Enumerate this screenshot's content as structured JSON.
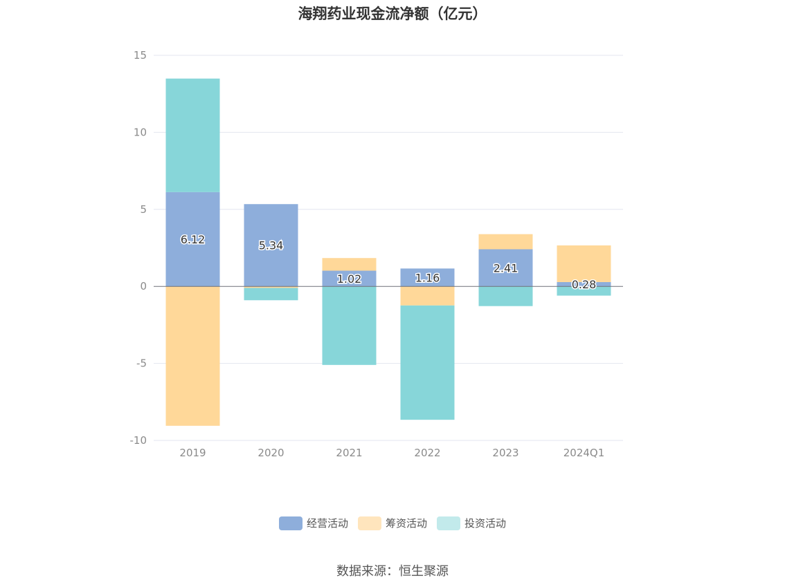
{
  "chart_data": {
    "type": "bar",
    "stacked": true,
    "title": "海翔药业现金流净额（亿元）",
    "categories": [
      "2019",
      "2020",
      "2021",
      "2022",
      "2023",
      "2024Q1"
    ],
    "series": [
      {
        "name": "经营活动",
        "color": "#8eaedb",
        "values": [
          6.12,
          5.34,
          1.02,
          1.16,
          2.41,
          0.28
        ],
        "show_labels": true
      },
      {
        "name": "筹资活动",
        "color": "#ffd899",
        "values": [
          -9.05,
          -0.1,
          0.82,
          -1.24,
          0.98,
          2.38
        ],
        "show_labels": false
      },
      {
        "name": "投资活动",
        "color": "#87d6d9",
        "values": [
          7.37,
          -0.8,
          -5.1,
          -7.42,
          -1.28,
          -0.6
        ],
        "show_labels": false
      }
    ],
    "yticks": [
      15,
      10,
      5,
      0,
      -5,
      -10
    ],
    "ylim": [
      -10,
      15
    ],
    "grid": true,
    "legend_position": "bottom"
  },
  "legend_swatches": {
    "经营活动": "#8eaedb",
    "筹资活动": "#ffe5bd",
    "投资活动": "#c2eaeb"
  },
  "source": "数据来源：恒生聚源"
}
